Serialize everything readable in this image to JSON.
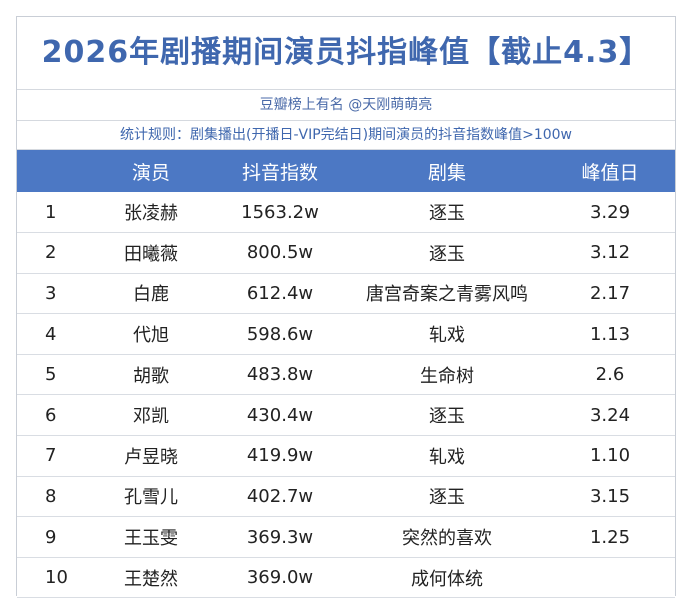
{
  "title": "2026年剧播期间演员抖指峰值【截止4.3】",
  "author": "豆瓣榜上有名 @天刚萌萌亮",
  "rule": "统计规则：剧集播出(开播日-VIP完结日)期间演员的抖音指数峰值>100w",
  "table": {
    "headers": [
      "",
      "演员",
      "抖音指数",
      "剧集",
      "峰值日"
    ],
    "rows": [
      [
        "1",
        "张凌赫",
        "1563.2w",
        "逐玉",
        "3.29"
      ],
      [
        "2",
        "田曦薇",
        "800.5w",
        "逐玉",
        "3.12"
      ],
      [
        "3",
        "白鹿",
        "612.4w",
        "唐宫奇案之青雾风鸣",
        "2.17"
      ],
      [
        "4",
        "代旭",
        "598.6w",
        "轧戏",
        "1.13"
      ],
      [
        "5",
        "胡歌",
        "483.8w",
        "生命树",
        "2.6"
      ],
      [
        "6",
        "邓凯",
        "430.4w",
        "逐玉",
        "3.24"
      ],
      [
        "7",
        "卢昱晓",
        "419.9w",
        "轧戏",
        "1.10"
      ],
      [
        "8",
        "孔雪儿",
        "402.7w",
        "逐玉",
        "3.15"
      ],
      [
        "9",
        "王玉雯",
        "369.3w",
        "突然的喜欢",
        "1.25"
      ],
      [
        "10",
        "王楚然",
        "369.0w",
        "成何体统",
        ""
      ]
    ]
  }
}
